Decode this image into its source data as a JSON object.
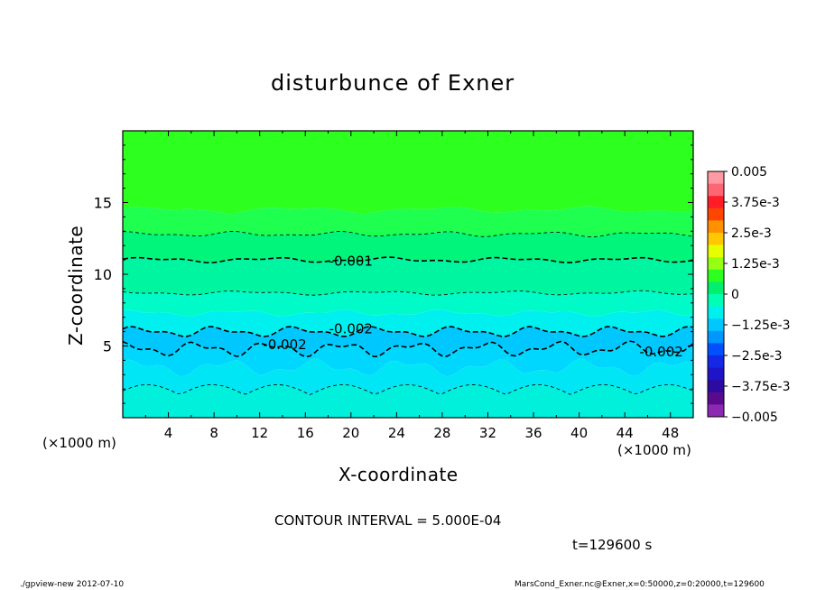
{
  "chart_data": {
    "type": "heatmap",
    "title": "disturbunce of Exner",
    "xlabel": "X-coordinate",
    "ylabel": "Z-coordinate",
    "x_unit": "(×1000 m)",
    "y_unit": "(×1000 m)",
    "xlim": [
      0,
      50
    ],
    "ylim": [
      0,
      20
    ],
    "x_ticks": [
      4,
      8,
      12,
      16,
      20,
      24,
      28,
      32,
      36,
      40,
      44,
      48
    ],
    "y_ticks": [
      5,
      10,
      15
    ],
    "contour_interval_label": "CONTOUR INTERVAL = 5.000E-04",
    "time_label": "t=129600 s",
    "footer_left": "./gpview-new  2012-07-10",
    "footer_right": "MarsCond_Exner.nc@Exner,x=0:50000,z=0:20000,t=129600",
    "colorbar": {
      "tick_labels": [
        "0.005",
        "3.75e-3",
        "2.5e-3",
        "1.25e-3",
        "0",
        "−1.25e-3",
        "−2.5e-3",
        "−3.75e-3",
        "−0.005"
      ],
      "colors": [
        "#ff9aa4",
        "#ff6673",
        "#ff1e28",
        "#ff4600",
        "#ff9100",
        "#ffc800",
        "#e6ff00",
        "#96ff14",
        "#2dff1e",
        "#00f06e",
        "#00ffb4",
        "#00f0f0",
        "#00c8ff",
        "#0096ff",
        "#0050ff",
        "#1428e6",
        "#1e14c8",
        "#2d0aa0",
        "#5a0a8c",
        "#8c28b4"
      ]
    },
    "contours": [
      {
        "level": -0.0005,
        "z": 12.8,
        "label": ""
      },
      {
        "level": -0.001,
        "z": 11.0,
        "label": "-0.001"
      },
      {
        "level": -0.0015,
        "z": 8.7,
        "label": ""
      },
      {
        "level": -0.002,
        "z": 6.0,
        "label": "-0.002"
      },
      {
        "level": -0.002,
        "z": 4.8,
        "label": "-0.002"
      },
      {
        "level": -0.0025,
        "z": 1.6,
        "label": ""
      }
    ],
    "contour_labels": [
      {
        "text": "-0.001",
        "x": 20.0,
        "z": 10.9
      },
      {
        "text": "-0.002",
        "x": 20.0,
        "z": 6.2
      },
      {
        "text": "-0.002",
        "x": 14.2,
        "z": 5.1
      },
      {
        "text": "-0.002",
        "x": 47.2,
        "z": 4.6
      }
    ]
  }
}
